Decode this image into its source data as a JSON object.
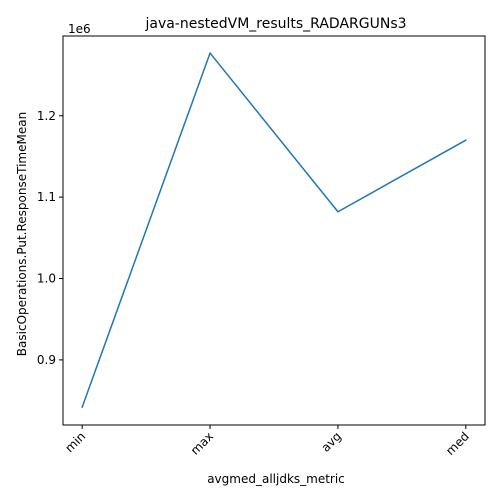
{
  "chart_data": {
    "type": "line",
    "title": "java-nestedVM_results_RADARGUNs3",
    "xlabel": "avgmed_alljdks_metric",
    "ylabel": "BasicOperations.Put.ResponseTimeMean",
    "y_offset_label": "1e6",
    "categories": [
      "min",
      "max",
      "avg",
      "med"
    ],
    "values": [
      842000,
      1277000,
      1082000,
      1170000
    ],
    "ylim": [
      820000,
      1298000
    ],
    "yticks": [
      900000,
      1000000,
      1100000,
      1200000
    ],
    "ytick_labels": [
      "0.9",
      "1.0",
      "1.1",
      "1.2"
    ],
    "line_color": "#1f77b4",
    "grid": false,
    "x_tick_rotation_deg": 45
  }
}
